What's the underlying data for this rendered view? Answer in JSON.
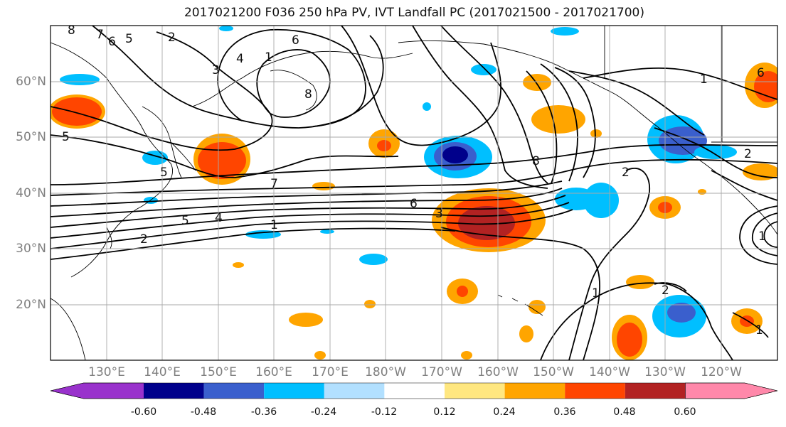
{
  "title": "2017021200 F036 250 hPa PV, IVT Landfall PC (2017021500 - 2017021700)",
  "lat_labels": [
    "60°N",
    "50°N",
    "40°N",
    "30°N",
    "20°N"
  ],
  "lon_labels": [
    "130°E",
    "140°E",
    "150°E",
    "160°E",
    "170°E",
    "180°W",
    "170°W",
    "160°W",
    "150°W",
    "140°W",
    "130°W",
    "120°W"
  ],
  "colorbar": {
    "ticks": [
      "-0.60",
      "-0.48",
      "-0.36",
      "-0.24",
      "-0.12",
      "0.12",
      "0.24",
      "0.36",
      "0.48",
      "0.60"
    ],
    "colors": [
      "#9932cc",
      "#00008b",
      "#3a5fcd",
      "#00bfff",
      "#b2e0ff",
      "#ffffff",
      "#ffe780",
      "#ffa500",
      "#ff4500",
      "#b22222",
      "#ff88aa"
    ]
  },
  "contour_labels": [
    "8",
    "7",
    "6",
    "5",
    "2",
    "3",
    "4",
    "1",
    "6",
    "8",
    "5",
    "5",
    "7",
    "6",
    "3",
    "5",
    "4",
    "2",
    "1",
    "8",
    "2",
    "1",
    "2",
    "1",
    "2",
    "1",
    "6",
    "1"
  ]
}
